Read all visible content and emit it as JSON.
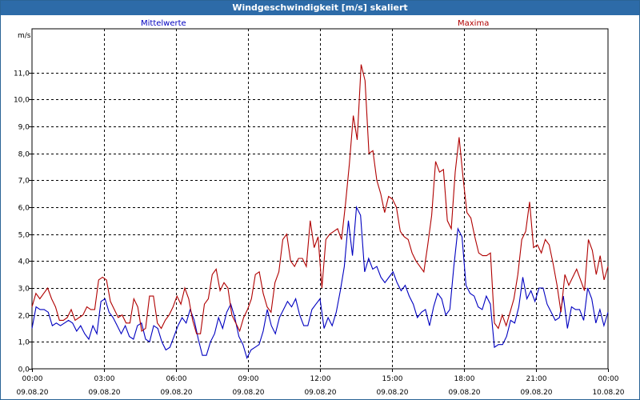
{
  "window": {
    "title": "Windgeschwindigkeit [m/s] skaliert"
  },
  "colors": {
    "titlebar": "#2d6ba8",
    "mean": "#0000c0",
    "max": "#b00000",
    "grid": "#000000"
  },
  "chart_data": {
    "type": "line",
    "title": "Windgeschwindigkeit [m/s] skaliert",
    "ylabel": "m/s",
    "ylim": [
      0,
      12
    ],
    "xlim": [
      0,
      24
    ],
    "grid": true,
    "legend": "top",
    "y_ticks": [
      "0,0",
      "1,0",
      "2,0",
      "3,0",
      "4,0",
      "5,0",
      "6,0",
      "7,0",
      "8,0",
      "9,0",
      "10,0",
      "11,0"
    ],
    "x_ticks": [
      {
        "time": "00:00",
        "date": "09.08.20"
      },
      {
        "time": "03:00",
        "date": "09.08.20"
      },
      {
        "time": "06:00",
        "date": "09.08.20"
      },
      {
        "time": "09:00",
        "date": "09.08.20"
      },
      {
        "time": "12:00",
        "date": "09.08.20"
      },
      {
        "time": "15:00",
        "date": "09.08.20"
      },
      {
        "time": "18:00",
        "date": "09.08.20"
      },
      {
        "time": "21:00",
        "date": "09.08.20"
      },
      {
        "time": "00:00",
        "date": "10.08.20"
      }
    ],
    "series": [
      {
        "name": "Mittelwerte",
        "color": "#0000c0",
        "values": [
          1.5,
          2.3,
          2.2,
          2.2,
          2.1,
          1.6,
          1.7,
          1.6,
          1.7,
          1.8,
          1.7,
          1.4,
          1.6,
          1.3,
          1.1,
          1.6,
          1.3,
          2.5,
          2.6,
          2.1,
          1.9,
          1.6,
          1.3,
          1.6,
          1.2,
          1.1,
          1.6,
          1.7,
          1.1,
          1.0,
          1.6,
          1.5,
          1.0,
          0.7,
          0.8,
          1.2,
          1.6,
          1.9,
          1.7,
          2.2,
          1.8,
          1.1,
          0.5,
          0.5,
          1.0,
          1.3,
          1.9,
          1.5,
          2.1,
          2.4,
          1.9,
          1.2,
          0.9,
          0.4,
          0.7,
          0.8,
          0.9,
          1.4,
          2.2,
          1.6,
          1.3,
          1.9,
          2.2,
          2.5,
          2.3,
          2.6,
          2.0,
          1.6,
          1.6,
          2.2,
          2.4,
          2.6,
          1.5,
          1.9,
          1.6,
          2.1,
          2.9,
          3.8,
          5.5,
          4.2,
          6.0,
          5.7,
          3.6,
          4.1,
          3.7,
          3.8,
          3.4,
          3.2,
          3.4,
          3.6,
          3.2,
          2.9,
          3.1,
          2.7,
          2.4,
          1.9,
          2.1,
          2.2,
          1.6,
          2.3,
          2.8,
          2.6,
          2.0,
          2.2,
          3.8,
          5.2,
          4.9,
          3.1,
          2.8,
          2.7,
          2.3,
          2.2,
          2.7,
          2.4,
          0.8,
          0.9,
          0.9,
          1.2,
          1.8,
          1.7,
          2.3,
          3.4,
          2.6,
          2.9,
          2.5,
          3.0,
          3.0,
          2.4,
          2.1,
          1.8,
          1.9,
          2.7,
          1.5,
          2.3,
          2.2,
          2.2,
          1.8,
          3.0,
          2.6,
          1.7,
          2.2,
          1.6,
          2.1
        ]
      },
      {
        "name": "Maxima",
        "color": "#b00000",
        "values": [
          2.3,
          2.8,
          2.6,
          2.8,
          3.0,
          2.6,
          2.3,
          1.8,
          1.8,
          1.9,
          2.2,
          1.8,
          1.9,
          2.0,
          2.3,
          2.2,
          2.2,
          3.3,
          3.4,
          3.3,
          2.5,
          2.2,
          1.9,
          2.0,
          1.7,
          1.7,
          2.6,
          2.3,
          1.4,
          1.5,
          2.7,
          2.7,
          1.7,
          1.5,
          1.8,
          2.0,
          2.3,
          2.7,
          2.4,
          3.0,
          2.6,
          1.8,
          1.3,
          1.3,
          2.4,
          2.6,
          3.5,
          3.7,
          2.9,
          3.2,
          3.0,
          2.0,
          1.7,
          1.4,
          1.9,
          2.2,
          2.6,
          3.5,
          3.6,
          2.8,
          2.3,
          2.1,
          3.2,
          3.6,
          4.8,
          5.0,
          4.0,
          3.8,
          4.1,
          4.1,
          3.8,
          5.5,
          4.5,
          4.9,
          3.0,
          4.8,
          5.0,
          5.1,
          5.2,
          4.8,
          6.1,
          7.6,
          9.4,
          8.5,
          11.3,
          10.7,
          8.0,
          8.1,
          7.0,
          6.5,
          5.8,
          6.4,
          6.3,
          6.0,
          5.1,
          4.9,
          4.8,
          4.3,
          4.0,
          3.8,
          3.6,
          4.6,
          5.7,
          7.7,
          7.3,
          7.4,
          5.5,
          5.2,
          7.3,
          8.6,
          7.1,
          5.8,
          5.6,
          4.9,
          4.3,
          4.2,
          4.2,
          4.3,
          1.7,
          1.5,
          2.0,
          1.6,
          2.1,
          2.6,
          3.5,
          4.8,
          5.1,
          6.2,
          4.5,
          4.6,
          4.3,
          4.8,
          4.6,
          3.9,
          3.1,
          2.1,
          3.5,
          3.1,
          3.4,
          3.7,
          3.3,
          2.9,
          4.8,
          4.4,
          3.5,
          4.2,
          3.3,
          3.8
        ]
      }
    ]
  }
}
